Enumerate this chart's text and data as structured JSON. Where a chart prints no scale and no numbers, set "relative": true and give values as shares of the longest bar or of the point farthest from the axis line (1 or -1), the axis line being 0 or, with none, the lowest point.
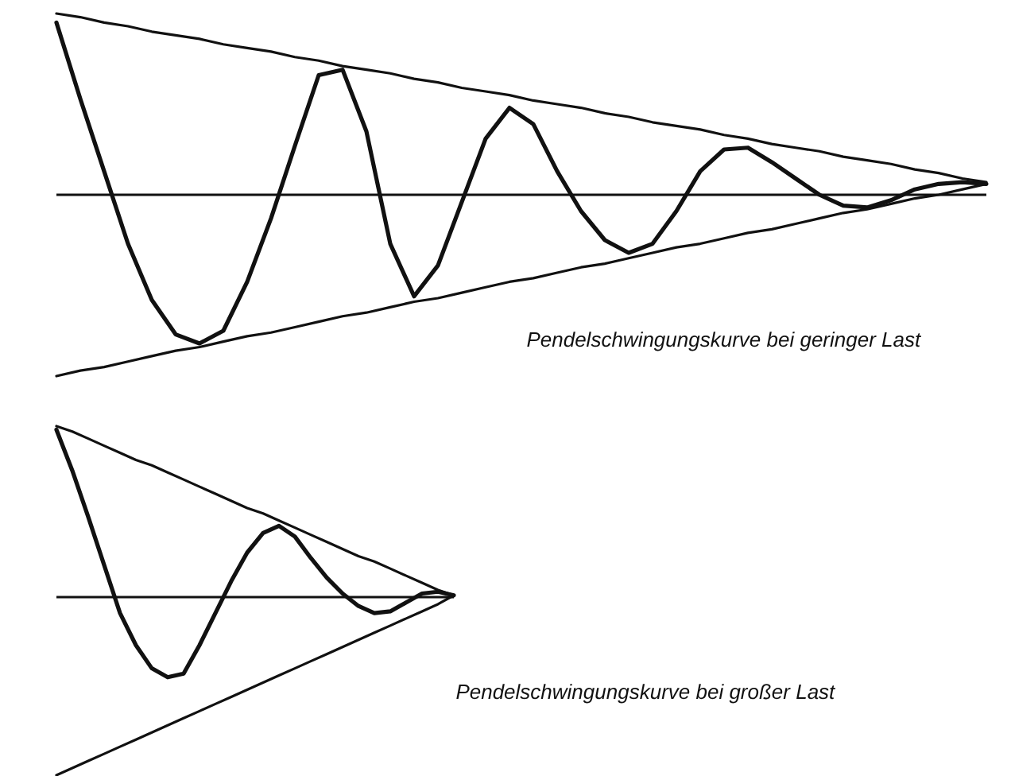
{
  "chart_data": [
    {
      "type": "line",
      "relative": true,
      "categories": [
        null,
        null,
        null,
        null,
        null,
        null,
        null,
        null,
        null,
        null,
        null,
        null,
        null,
        null,
        null,
        null,
        null,
        null,
        null,
        null,
        null,
        null,
        null,
        null,
        null,
        null,
        null,
        null,
        null,
        null,
        null,
        null,
        null,
        null,
        null,
        null,
        null,
        null,
        null,
        null
      ],
      "series": [
        {
          "color": "#111111",
          "values": [
            0.95,
            0.53,
            0.13,
            -0.27,
            -0.58,
            -0.77,
            -0.82,
            -0.75,
            -0.48,
            -0.13,
            0.27,
            0.66,
            0.69,
            0.35,
            -0.27,
            -0.56,
            -0.39,
            -0.04,
            0.31,
            0.48,
            0.39,
            0.13,
            -0.09,
            -0.25,
            -0.32,
            -0.27,
            -0.09,
            0.13,
            0.25,
            0.26,
            0.18,
            0.09,
            0.0,
            -0.06,
            -0.07,
            -0.03,
            0.03,
            0.06,
            0.07,
            0.06
          ]
        },
        {
          "color": "#111111",
          "values": [
            1.0,
            0.98,
            0.95,
            0.93,
            0.9,
            0.88,
            0.86,
            0.83,
            0.81,
            0.79,
            0.76,
            0.74,
            0.71,
            0.69,
            0.67,
            0.64,
            0.62,
            0.59,
            0.57,
            0.55,
            0.52,
            0.5,
            0.48,
            0.45,
            0.43,
            0.4,
            0.38,
            0.36,
            0.33,
            0.31,
            0.28,
            0.26,
            0.24,
            0.21,
            0.19,
            0.17,
            0.14,
            0.12,
            0.09,
            0.07
          ]
        },
        {
          "color": "#111111",
          "values": [
            -1.0,
            -0.97,
            -0.95,
            -0.92,
            -0.89,
            -0.86,
            -0.84,
            -0.81,
            -0.78,
            -0.76,
            -0.73,
            -0.7,
            -0.67,
            -0.65,
            -0.62,
            -0.59,
            -0.57,
            -0.54,
            -0.51,
            -0.48,
            -0.46,
            -0.43,
            -0.4,
            -0.38,
            -0.35,
            -0.32,
            -0.29,
            -0.27,
            -0.24,
            -0.21,
            -0.19,
            -0.16,
            -0.13,
            -0.1,
            -0.08,
            -0.05,
            -0.02,
            0.0,
            0.03,
            0.06
          ]
        }
      ],
      "annotations": [
        "Pendelschwingungskurve bei geringer Last"
      ]
    },
    {
      "type": "line",
      "relative": true,
      "categories": [
        null,
        null,
        null,
        null,
        null,
        null,
        null,
        null,
        null,
        null,
        null,
        null,
        null,
        null,
        null,
        null,
        null,
        null,
        null,
        null,
        null,
        null,
        null,
        null,
        null,
        null
      ],
      "series": [
        {
          "color": "#111111",
          "values": [
            0.94,
            0.71,
            0.45,
            0.18,
            -0.09,
            -0.27,
            -0.4,
            -0.45,
            -0.43,
            -0.27,
            -0.09,
            0.09,
            0.25,
            0.36,
            0.4,
            0.34,
            0.22,
            0.11,
            0.02,
            -0.05,
            -0.09,
            -0.08,
            -0.03,
            0.02,
            0.03,
            0.01
          ]
        },
        {
          "color": "#111111",
          "values": [
            0.96,
            0.93,
            0.89,
            0.85,
            0.81,
            0.77,
            0.74,
            0.7,
            0.66,
            0.62,
            0.58,
            0.54,
            0.5,
            0.47,
            0.43,
            0.39,
            0.35,
            0.31,
            0.27,
            0.23,
            0.2,
            0.16,
            0.12,
            0.08,
            0.04,
            0.01
          ]
        },
        {
          "color": "#111111",
          "values": [
            -1.0,
            -0.96,
            -0.92,
            -0.88,
            -0.84,
            -0.8,
            -0.76,
            -0.72,
            -0.68,
            -0.64,
            -0.6,
            -0.56,
            -0.52,
            -0.48,
            -0.44,
            -0.4,
            -0.36,
            -0.32,
            -0.28,
            -0.24,
            -0.2,
            -0.16,
            -0.12,
            -0.08,
            -0.04,
            0.01
          ]
        }
      ],
      "annotations": [
        "Pendelschwingungskurve bei großer Last"
      ]
    }
  ]
}
